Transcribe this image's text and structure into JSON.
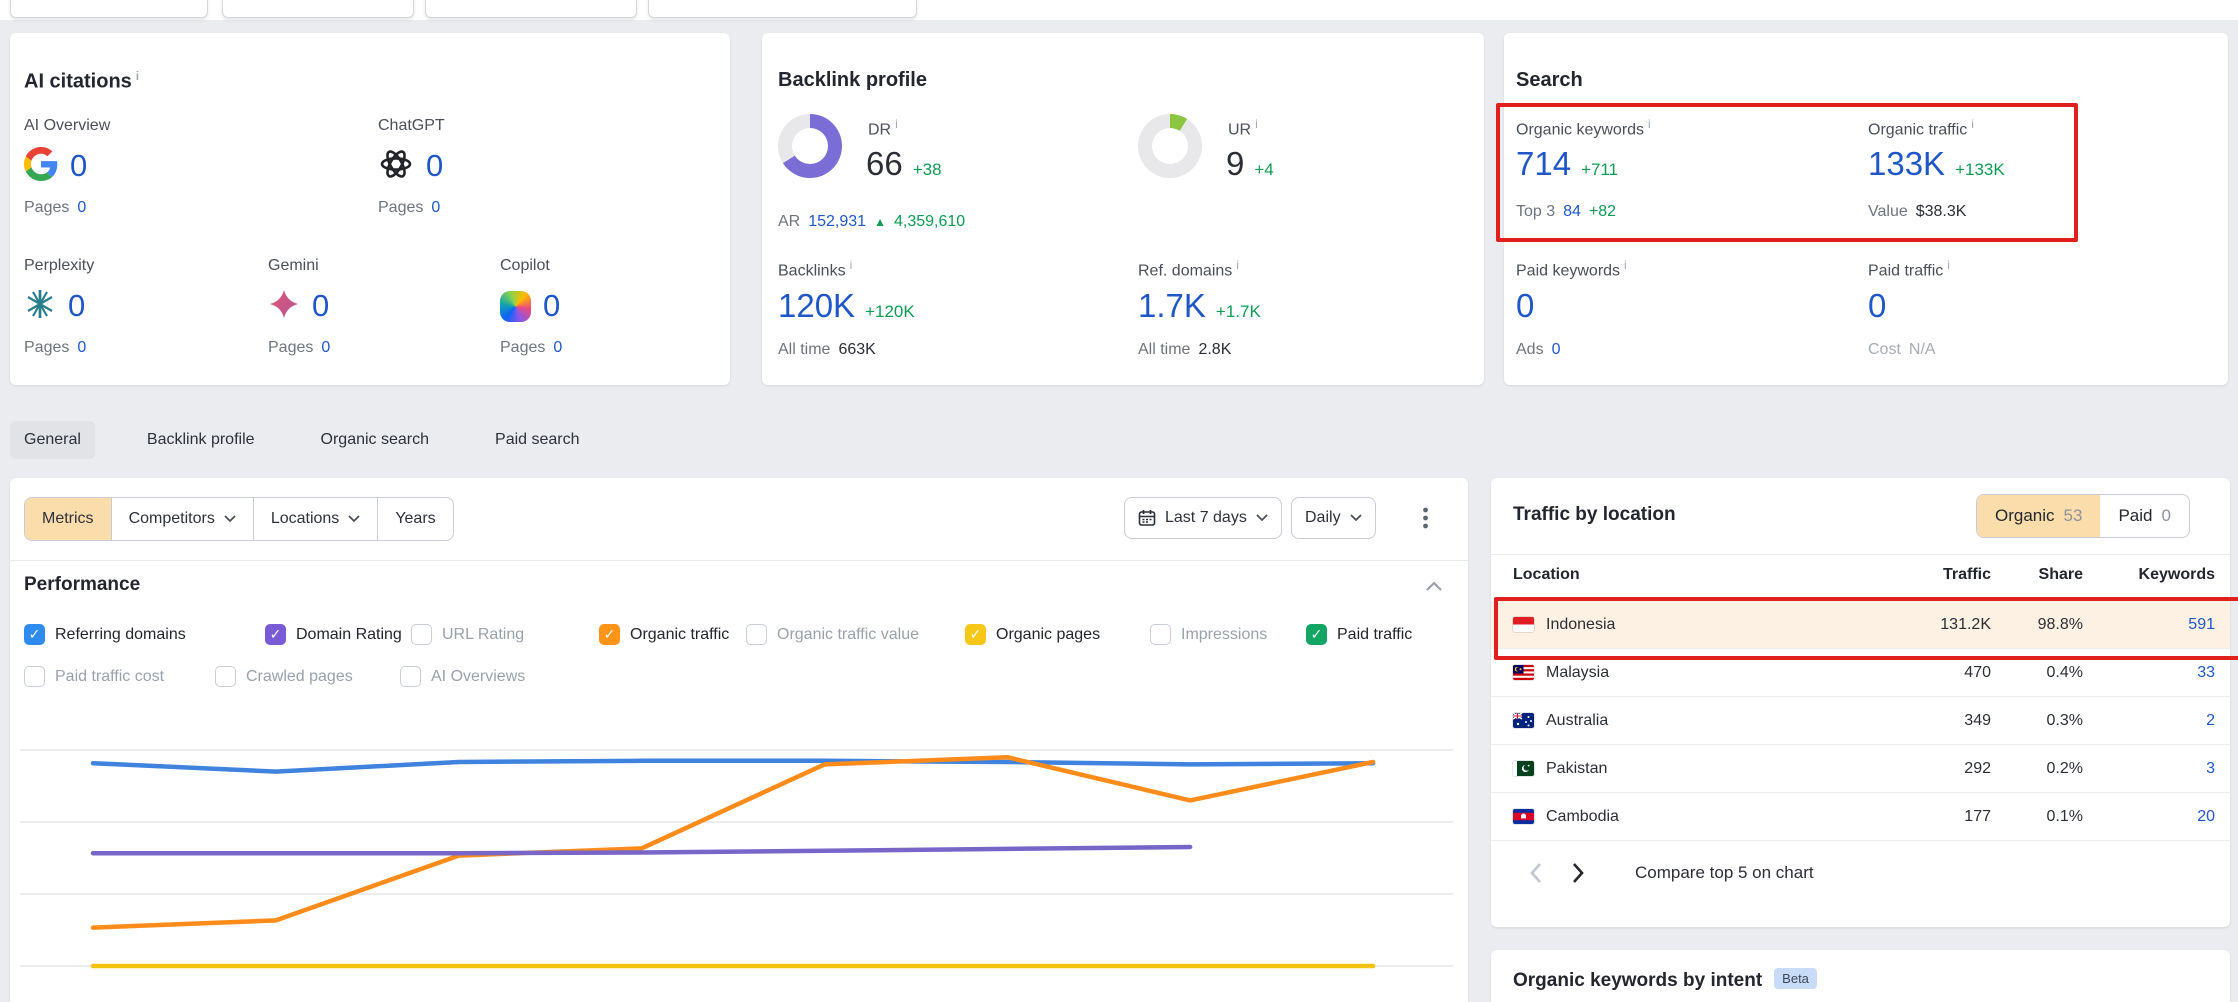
{
  "colors": {
    "accent_blue": "#1f57c8",
    "positive_green": "#0d9b53",
    "annotation_red": "#e0201c",
    "active_filter_peach": "#fbdcab"
  },
  "ai_citations": {
    "title": "AI citations",
    "items": [
      {
        "label": "AI Overview",
        "icon": "google-icon",
        "value": "0",
        "pages_label": "Pages",
        "pages_value": "0"
      },
      {
        "label": "ChatGPT",
        "icon": "chatgpt-icon",
        "value": "0",
        "pages_label": "Pages",
        "pages_value": "0"
      },
      {
        "label": "Perplexity",
        "icon": "perplexity-icon",
        "value": "0",
        "pages_label": "Pages",
        "pages_value": "0"
      },
      {
        "label": "Gemini",
        "icon": "gemini-icon",
        "value": "0",
        "pages_label": "Pages",
        "pages_value": "0"
      },
      {
        "label": "Copilot",
        "icon": "copilot-icon",
        "value": "0",
        "pages_label": "Pages",
        "pages_value": "0"
      }
    ]
  },
  "backlink_profile": {
    "title": "Backlink profile",
    "dr": {
      "label": "DR",
      "value": "66",
      "delta": "+38",
      "percent": 66,
      "color": "#7a6ed6"
    },
    "ur": {
      "label": "UR",
      "value": "9",
      "delta": "+4",
      "percent": 9,
      "color": "#8bc541"
    },
    "ar": {
      "label": "AR",
      "value": "152,931",
      "delta": "4,359,610"
    },
    "backlinks": {
      "label": "Backlinks",
      "value": "120K",
      "delta": "+120K",
      "alltime_label": "All time",
      "alltime_value": "663K"
    },
    "ref_domains": {
      "label": "Ref. domains",
      "value": "1.7K",
      "delta": "+1.7K",
      "alltime_label": "All time",
      "alltime_value": "2.8K"
    }
  },
  "search": {
    "title": "Search",
    "organic_keywords": {
      "label": "Organic keywords",
      "value": "714",
      "delta": "+711",
      "sub_label": "Top 3",
      "sub_value": "84",
      "sub_delta": "+82"
    },
    "organic_traffic": {
      "label": "Organic traffic",
      "value": "133K",
      "delta": "+133K",
      "sub_label": "Value",
      "sub_value": "$38.3K"
    },
    "paid_keywords": {
      "label": "Paid keywords",
      "value": "0",
      "sub_label": "Ads",
      "sub_value": "0"
    },
    "paid_traffic": {
      "label": "Paid traffic",
      "value": "0",
      "sub_label": "Cost",
      "sub_value": "N/A"
    }
  },
  "tabs": {
    "items": [
      {
        "label": "General",
        "active": true
      },
      {
        "label": "Backlink profile",
        "active": false
      },
      {
        "label": "Organic search",
        "active": false
      },
      {
        "label": "Paid search",
        "active": false
      }
    ]
  },
  "filters": {
    "metrics": "Metrics",
    "competitors": "Competitors",
    "locations": "Locations",
    "years": "Years",
    "date_range": "Last 7 days",
    "granularity": "Daily"
  },
  "performance": {
    "title": "Performance",
    "row1": [
      {
        "label": "Referring domains",
        "checked": true,
        "color": "#2e8bf0"
      },
      {
        "label": "Domain Rating",
        "checked": true,
        "color": "#7a5bd6"
      },
      {
        "label": "URL Rating",
        "checked": false
      },
      {
        "label": "Organic traffic",
        "checked": true,
        "color": "#ff9418"
      },
      {
        "label": "Organic traffic value",
        "checked": false
      },
      {
        "label": "Organic pages",
        "checked": true,
        "color": "#f6c716"
      },
      {
        "label": "Impressions",
        "checked": false
      },
      {
        "label": "Paid traffic",
        "checked": true,
        "color": "#12a564"
      }
    ],
    "row2": [
      {
        "label": "Paid traffic cost",
        "checked": false
      },
      {
        "label": "Crawled pages",
        "checked": false
      },
      {
        "label": "AI Overviews",
        "checked": false
      }
    ]
  },
  "chart_data": {
    "type": "line",
    "x": [
      1,
      2,
      3,
      4,
      5,
      6,
      7,
      8
    ],
    "x_note": "Daily points over Last 7 days; axis tick labels are not visible in the screenshot",
    "ylim": [
      0,
      115
    ],
    "gridlines": [
      0,
      30,
      60,
      90
    ],
    "grid": true,
    "legend_position": "none",
    "series": [
      {
        "name": "Referring domains",
        "color": "#3f83df",
        "values": [
          84.5,
          81,
          85,
          85.5,
          85.5,
          85,
          84,
          84.5
        ]
      },
      {
        "name": "Organic traffic",
        "color": "#ff8c1a",
        "values": [
          16,
          19,
          46,
          49,
          84,
          87,
          69,
          85
        ]
      },
      {
        "name": "Domain Rating",
        "color": "#7766c8",
        "values": [
          47,
          47,
          47,
          47.3,
          48,
          48.8,
          49.6,
          null
        ]
      },
      {
        "name": "Organic pages",
        "color": "#f2c20f",
        "values": [
          0,
          0,
          0,
          0,
          0,
          0,
          0,
          0
        ]
      }
    ]
  },
  "traffic_by_location": {
    "title": "Traffic by location",
    "toggle": {
      "organic_label": "Organic",
      "organic_count": "53",
      "paid_label": "Paid",
      "paid_count": "0"
    },
    "columns": {
      "location": "Location",
      "traffic": "Traffic",
      "share": "Share",
      "keywords": "Keywords"
    },
    "rows": [
      {
        "location": "Indonesia",
        "traffic": "131.2K",
        "share": "98.8%",
        "keywords": "591",
        "highlighted": true
      },
      {
        "location": "Malaysia",
        "traffic": "470",
        "share": "0.4%",
        "keywords": "33",
        "highlighted": false
      },
      {
        "location": "Australia",
        "traffic": "349",
        "share": "0.3%",
        "keywords": "2",
        "highlighted": false
      },
      {
        "location": "Pakistan",
        "traffic": "292",
        "share": "0.2%",
        "keywords": "3",
        "highlighted": false
      },
      {
        "location": "Cambodia",
        "traffic": "177",
        "share": "0.1%",
        "keywords": "20",
        "highlighted": false
      }
    ],
    "compare_label": "Compare top 5 on chart"
  },
  "intent": {
    "title": "Organic keywords by intent",
    "badge": "Beta"
  }
}
